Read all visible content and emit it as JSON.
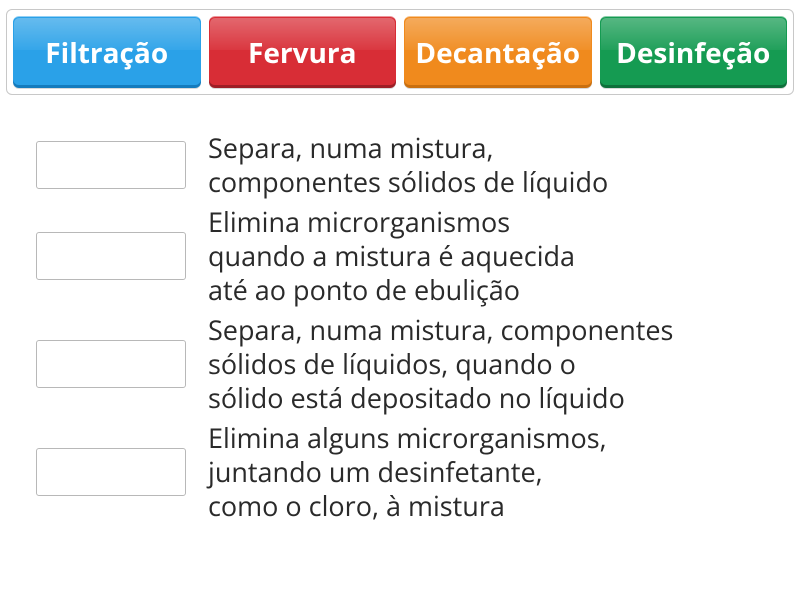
{
  "options": [
    {
      "label": "Filtração",
      "bg": "#2aa1e8",
      "border": "#147bbd"
    },
    {
      "label": "Fervura",
      "bg": "#d82d36",
      "border": "#9e1e26"
    },
    {
      "label": "Decantação",
      "bg": "#f08a1d",
      "border": "#c96f0f"
    },
    {
      "label": "Desinfeção",
      "bg": "#159b52",
      "border": "#0e703b"
    }
  ],
  "rows": [
    {
      "text": "Separa, numa mistura,\ncomponentes sólidos de líquido"
    },
    {
      "text": "Elimina microrganismos\nquando a mistura é aquecida\naté ao ponto de ebulição"
    },
    {
      "text": "Separa, numa mistura, componentes\nsólidos de líquidos, quando o\nsólido está depositado no líquido"
    },
    {
      "text": "Elimina alguns microrganismos,\njuntando um desinfetante,\ncomo o cloro, à mistura"
    }
  ],
  "style": {
    "option_font_size": 28,
    "description_font_size": 27,
    "description_color": "#2a2a2a",
    "container_border_color": "#c8c8c8",
    "drop_border_color": "#b8b8b8",
    "background": "#ffffff"
  }
}
